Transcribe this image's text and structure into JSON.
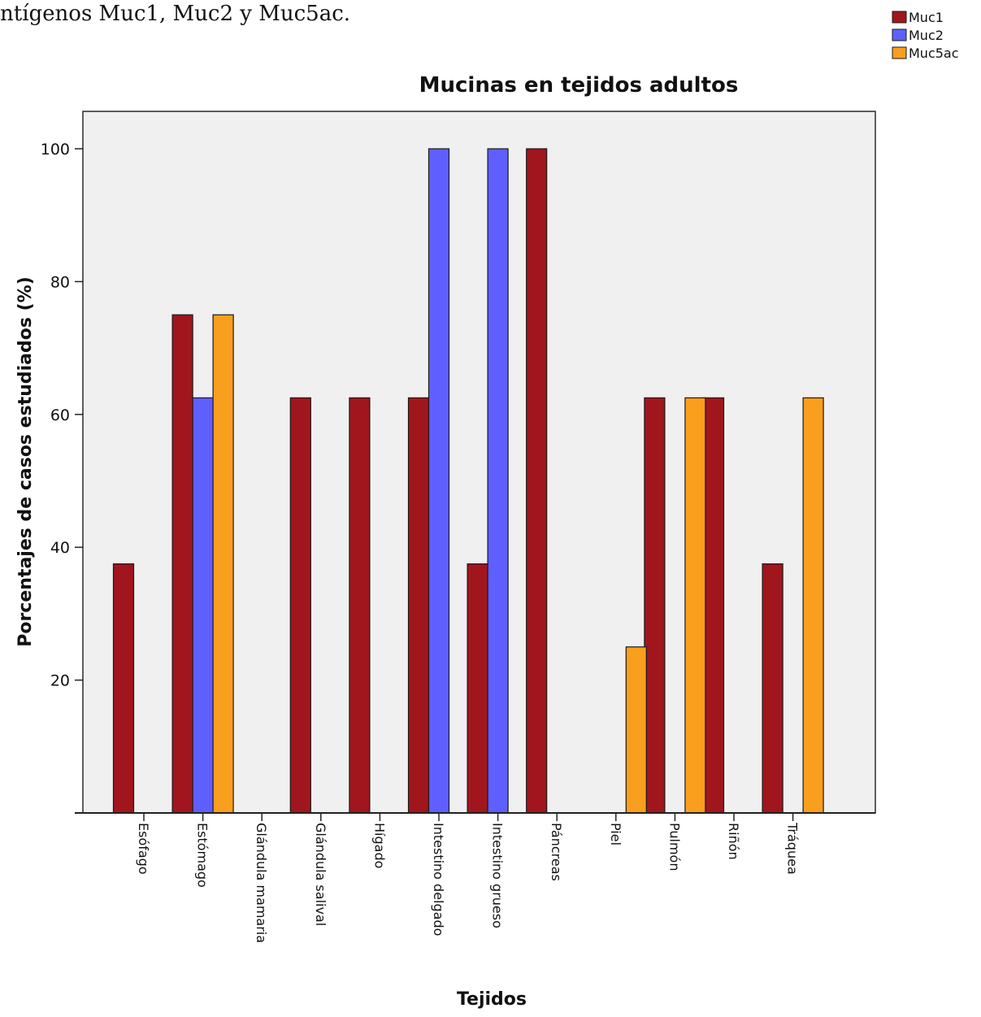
{
  "document": {
    "top_text": "ntígenos Muc1, Muc2 y Muc5ac."
  },
  "chart_data": {
    "type": "bar",
    "title": "Mucinas en tejidos adultos",
    "xlabel": "Tejidos",
    "ylabel": "Porcentajes de casos estudiados  (%)",
    "ylim": [
      0,
      105
    ],
    "yticks": [
      20,
      40,
      60,
      80,
      100
    ],
    "grid": false,
    "legend_position": "top-right",
    "categories": [
      "Esófago",
      "Estómago",
      "Glándula mamaria",
      "Glándula salival",
      "Hígado",
      "Intestino delgado",
      "Intestino grueso",
      "Páncreas",
      "Piel",
      "Pulmón",
      "Riñón",
      "Tráquea"
    ],
    "series": [
      {
        "name": "Muc1",
        "color": "#a0161c",
        "values": [
          37.5,
          75,
          0,
          62.5,
          62.5,
          62.5,
          37.5,
          100,
          0,
          62.5,
          62.5,
          37.5
        ]
      },
      {
        "name": "Muc2",
        "color": "#5f5fff",
        "values": [
          0,
          62.5,
          0,
          0,
          0,
          100,
          100,
          0,
          0,
          0,
          0,
          0
        ]
      },
      {
        "name": "Muc5ac",
        "color": "#fa9e1e",
        "values": [
          0,
          75,
          0,
          0,
          0,
          0,
          0,
          0,
          25,
          62.5,
          0,
          62.5
        ]
      }
    ]
  }
}
